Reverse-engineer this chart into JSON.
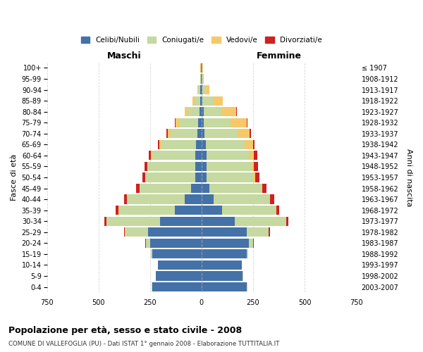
{
  "age_groups": [
    "0-4",
    "5-9",
    "10-14",
    "15-19",
    "20-24",
    "25-29",
    "30-34",
    "35-39",
    "40-44",
    "45-49",
    "50-54",
    "55-59",
    "60-64",
    "65-69",
    "70-74",
    "75-79",
    "80-84",
    "85-89",
    "90-94",
    "95-99",
    "100+"
  ],
  "birth_years": [
    "2003-2007",
    "1998-2002",
    "1993-1997",
    "1988-1992",
    "1983-1987",
    "1978-1982",
    "1973-1977",
    "1968-1972",
    "1963-1967",
    "1958-1962",
    "1953-1957",
    "1948-1952",
    "1943-1947",
    "1938-1942",
    "1933-1937",
    "1928-1932",
    "1923-1927",
    "1918-1922",
    "1913-1917",
    "1908-1912",
    "≤ 1907"
  ],
  "males": {
    "celibe": [
      240,
      220,
      210,
      240,
      250,
      260,
      200,
      130,
      80,
      50,
      30,
      30,
      30,
      25,
      20,
      15,
      10,
      5,
      5,
      2,
      2
    ],
    "coniugato": [
      2,
      2,
      2,
      5,
      20,
      110,
      260,
      270,
      280,
      250,
      240,
      230,
      210,
      170,
      130,
      90,
      55,
      30,
      10,
      3,
      2
    ],
    "vedovo": [
      0,
      0,
      0,
      1,
      1,
      2,
      2,
      2,
      2,
      2,
      2,
      2,
      5,
      10,
      15,
      20,
      15,
      10,
      5,
      2,
      1
    ],
    "divorziato": [
      0,
      0,
      0,
      1,
      2,
      5,
      10,
      15,
      15,
      15,
      15,
      15,
      10,
      5,
      5,
      3,
      2,
      0,
      0,
      0,
      0
    ]
  },
  "females": {
    "nubile": [
      220,
      200,
      195,
      220,
      230,
      220,
      160,
      100,
      60,
      40,
      25,
      25,
      25,
      20,
      15,
      10,
      10,
      5,
      5,
      2,
      2
    ],
    "coniugata": [
      2,
      2,
      2,
      5,
      20,
      105,
      250,
      260,
      270,
      250,
      230,
      220,
      210,
      190,
      160,
      130,
      90,
      50,
      15,
      5,
      2
    ],
    "vedova": [
      0,
      0,
      0,
      1,
      1,
      2,
      2,
      2,
      2,
      5,
      5,
      10,
      20,
      40,
      60,
      80,
      70,
      50,
      20,
      5,
      3
    ],
    "divorziata": [
      0,
      0,
      0,
      1,
      2,
      5,
      10,
      15,
      20,
      20,
      20,
      20,
      15,
      8,
      5,
      3,
      2,
      0,
      0,
      0,
      0
    ]
  },
  "colors": {
    "celibe": "#4472a8",
    "coniugato": "#c5d9a0",
    "vedovo": "#f5c96a",
    "divorziato": "#cc2222"
  },
  "legend_labels": [
    "Celibi/Nubili",
    "Coniugati/e",
    "Vedovi/e",
    "Divorziati/e"
  ],
  "title": "Popolazione per età, sesso e stato civile - 2008",
  "subtitle": "COMUNE DI VALLEFOGLIA (PU) - Dati ISTAT 1° gennaio 2008 - Elaborazione TUTTITALIA.IT",
  "xlabel_left": "Maschi",
  "xlabel_right": "Femmine",
  "ylabel_left": "Fasce di età",
  "ylabel_right": "Anni di nascita",
  "xlim": 750,
  "bg_color": "#ffffff",
  "grid_color": "#cccccc",
  "bar_height": 0.85
}
